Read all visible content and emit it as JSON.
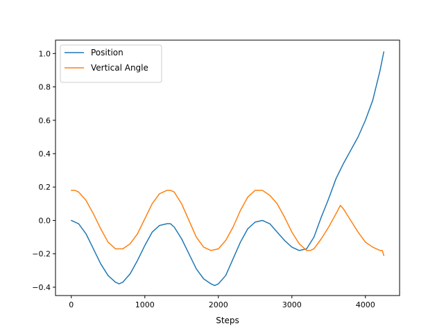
{
  "chart_data": {
    "type": "line",
    "title": "",
    "xlabel": "Steps",
    "ylabel": "",
    "xlim": [
      -215,
      4465
    ],
    "ylim": [
      -0.45,
      1.08
    ],
    "xticks": [
      0,
      1000,
      2000,
      3000,
      4000
    ],
    "xtick_labels": [
      "0",
      "1000",
      "2000",
      "3000",
      "4000"
    ],
    "yticks": [
      -0.4,
      -0.2,
      0.0,
      0.2,
      0.4,
      0.6,
      0.8,
      1.0
    ],
    "ytick_labels": [
      "−0.4",
      "−0.2",
      "0.0",
      "0.2",
      "0.4",
      "0.6",
      "0.8",
      "1.0"
    ],
    "grid": false,
    "legend_position": "upper-left",
    "series": [
      {
        "name": "Position",
        "color": "#1f77b4",
        "x": [
          0,
          100,
          200,
          300,
          400,
          500,
          600,
          650,
          700,
          800,
          900,
          1000,
          1100,
          1200,
          1300,
          1350,
          1400,
          1500,
          1600,
          1700,
          1800,
          1900,
          1950,
          2000,
          2100,
          2200,
          2300,
          2400,
          2500,
          2600,
          2650,
          2700,
          2800,
          2900,
          3000,
          3100,
          3200,
          3300,
          3400,
          3500,
          3600,
          3700,
          3800,
          3900,
          4000,
          4100,
          4200,
          4250
        ],
        "y": [
          0.0,
          -0.02,
          -0.08,
          -0.17,
          -0.26,
          -0.33,
          -0.37,
          -0.38,
          -0.37,
          -0.32,
          -0.24,
          -0.15,
          -0.07,
          -0.03,
          -0.02,
          -0.02,
          -0.04,
          -0.11,
          -0.2,
          -0.29,
          -0.35,
          -0.38,
          -0.39,
          -0.38,
          -0.33,
          -0.23,
          -0.13,
          -0.05,
          -0.01,
          0.0,
          -0.01,
          -0.02,
          -0.07,
          -0.12,
          -0.16,
          -0.18,
          -0.17,
          -0.1,
          0.02,
          0.13,
          0.25,
          0.34,
          0.42,
          0.5,
          0.6,
          0.72,
          0.9,
          1.01
        ]
      },
      {
        "name": "Vertical Angle",
        "color": "#ff7f0e",
        "x": [
          0,
          50,
          100,
          200,
          300,
          400,
          500,
          600,
          700,
          800,
          900,
          1000,
          1100,
          1200,
          1300,
          1350,
          1400,
          1500,
          1600,
          1700,
          1800,
          1900,
          2000,
          2100,
          2200,
          2300,
          2400,
          2500,
          2570,
          2600,
          2700,
          2800,
          2900,
          3000,
          3100,
          3200,
          3250,
          3300,
          3400,
          3500,
          3600,
          3660,
          3700,
          3800,
          3900,
          4000,
          4100,
          4200,
          4230,
          4250
        ],
        "y": [
          0.18,
          0.18,
          0.17,
          0.12,
          0.04,
          -0.05,
          -0.13,
          -0.17,
          -0.17,
          -0.14,
          -0.08,
          0.01,
          0.1,
          0.16,
          0.18,
          0.18,
          0.17,
          0.1,
          0.0,
          -0.1,
          -0.16,
          -0.18,
          -0.17,
          -0.12,
          -0.04,
          0.06,
          0.14,
          0.18,
          0.18,
          0.18,
          0.15,
          0.1,
          0.02,
          -0.07,
          -0.14,
          -0.18,
          -0.18,
          -0.17,
          -0.11,
          -0.04,
          0.04,
          0.09,
          0.07,
          0.0,
          -0.07,
          -0.13,
          -0.16,
          -0.18,
          -0.18,
          -0.21
        ]
      }
    ]
  }
}
